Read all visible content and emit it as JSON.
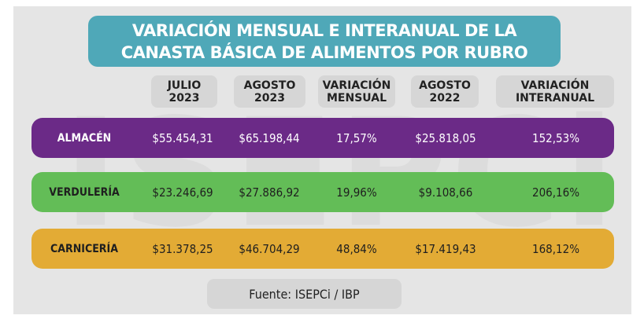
{
  "watermark": "ISEPCi",
  "title": {
    "line1": "VARIACIÓN MENSUAL E INTERANUAL DE LA",
    "line2": "CANASTA BÁSICA DE ALIMENTOS POR RUBRO"
  },
  "headers": [
    {
      "l1": "JULIO",
      "l2": "2023"
    },
    {
      "l1": "AGOSTO",
      "l2": "2023"
    },
    {
      "l1": "VARIACIÓN",
      "l2": "MENSUAL"
    },
    {
      "l1": "AGOSTO",
      "l2": "2022"
    },
    {
      "l1": "VARIACIÓN",
      "l2": "INTERANUAL"
    }
  ],
  "rows": [
    {
      "label": "ALMACÉN",
      "color": "#6b2a87",
      "text_color": "#ffffff",
      "values": [
        "$55.454,31",
        "$65.198,44",
        "17,57%",
        "$25.818,05",
        "152,53%"
      ]
    },
    {
      "label": "VERDULERÍA",
      "color": "#63bd57",
      "text_color": "#1f1f1f",
      "values": [
        "$23.246,69",
        "$27.886,92",
        "19,96%",
        "$9.108,66",
        "206,16%"
      ]
    },
    {
      "label": "CARNICERÍA",
      "color": "#e3ab35",
      "text_color": "#1f1f1f",
      "values": [
        "$31.378,25",
        "$46.704,29",
        "48,84%",
        "$17.419,43",
        "168,12%"
      ]
    }
  ],
  "source": "Fuente: ISEPCi / IBP"
}
